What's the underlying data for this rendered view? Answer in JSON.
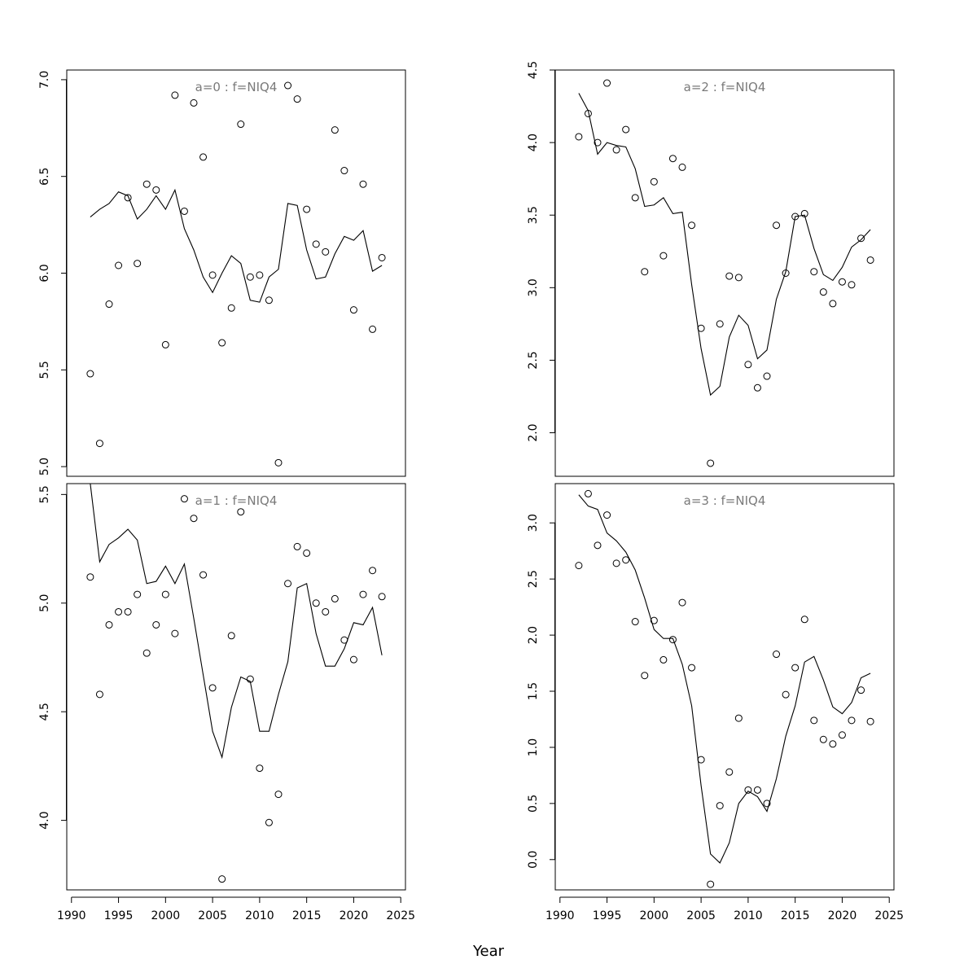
{
  "figure": {
    "xlabel": "Year",
    "xticks": [
      1990,
      1995,
      2000,
      2005,
      2010,
      2015,
      2020,
      2025
    ],
    "xlim": [
      1989.5,
      2025.5
    ]
  },
  "chart_data": [
    {
      "type": "scatter",
      "panel": "top-left",
      "title": "a=0  :  f=NIQ4",
      "ylim": [
        4.95,
        7.05
      ],
      "yticks": [
        5.0,
        5.5,
        6.0,
        6.5,
        7.0
      ],
      "ytick_labels": [
        "5.0",
        "5.5",
        "6.0",
        "6.5",
        "7.0"
      ],
      "show_xaxis": false,
      "x": [
        1992,
        1993,
        1994,
        1995,
        1996,
        1997,
        1998,
        1999,
        2000,
        2001,
        2002,
        2003,
        2004,
        2005,
        2006,
        2007,
        2008,
        2009,
        2010,
        2011,
        2012,
        2013,
        2014,
        2015,
        2016,
        2017,
        2018,
        2019,
        2020,
        2021,
        2022,
        2023
      ],
      "series": [
        {
          "name": "observed",
          "style": "points",
          "values": [
            5.48,
            5.12,
            5.84,
            6.04,
            6.39,
            6.05,
            6.46,
            6.43,
            5.63,
            6.92,
            6.32,
            6.88,
            6.6,
            5.99,
            5.64,
            5.82,
            6.77,
            5.98,
            5.99,
            5.86,
            5.02,
            6.97,
            6.9,
            6.33,
            6.15,
            6.11,
            6.74,
            6.53,
            5.81,
            6.46,
            5.71,
            6.08
          ]
        },
        {
          "name": "fitted",
          "style": "line",
          "values": [
            6.29,
            6.33,
            6.36,
            6.42,
            6.4,
            6.28,
            6.33,
            6.4,
            6.33,
            6.43,
            6.23,
            6.12,
            5.98,
            5.9,
            6.0,
            6.09,
            6.05,
            5.86,
            5.85,
            5.98,
            6.02,
            6.36,
            6.35,
            6.12,
            5.97,
            5.98,
            6.1,
            6.19,
            6.17,
            6.22,
            6.01,
            6.04
          ]
        }
      ]
    },
    {
      "type": "scatter",
      "panel": "top-right",
      "title": "a=2  :  f=NIQ4",
      "ylim": [
        1.7,
        4.5
      ],
      "yticks": [
        2.0,
        2.5,
        3.0,
        3.5,
        4.0,
        4.5
      ],
      "ytick_labels": [
        "2.0",
        "2.5",
        "3.0",
        "3.5",
        "4.0",
        "4.5"
      ],
      "show_xaxis": false,
      "x": [
        1992,
        1993,
        1994,
        1995,
        1996,
        1997,
        1998,
        1999,
        2000,
        2001,
        2002,
        2003,
        2004,
        2005,
        2006,
        2007,
        2008,
        2009,
        2010,
        2011,
        2012,
        2013,
        2014,
        2015,
        2016,
        2017,
        2018,
        2019,
        2020,
        2021,
        2022,
        2023
      ],
      "series": [
        {
          "name": "observed",
          "style": "points",
          "values": [
            4.04,
            4.2,
            4.0,
            4.41,
            3.95,
            4.09,
            3.62,
            3.11,
            3.73,
            3.22,
            3.89,
            3.83,
            3.43,
            2.72,
            1.79,
            2.75,
            3.08,
            3.07,
            2.47,
            2.31,
            2.39,
            3.43,
            3.1,
            3.49,
            3.51,
            3.11,
            2.97,
            2.89,
            3.04,
            3.02,
            3.34,
            3.19
          ]
        },
        {
          "name": "fitted",
          "style": "line",
          "values": [
            4.34,
            4.22,
            3.92,
            4.0,
            3.98,
            3.97,
            3.82,
            3.56,
            3.57,
            3.62,
            3.51,
            3.52,
            3.02,
            2.58,
            2.26,
            2.32,
            2.66,
            2.81,
            2.74,
            2.51,
            2.57,
            2.92,
            3.11,
            3.49,
            3.5,
            3.27,
            3.09,
            3.05,
            3.14,
            3.28,
            3.33,
            3.4
          ]
        }
      ]
    },
    {
      "type": "scatter",
      "panel": "bottom-left",
      "title": "a=1  :  f=NIQ4",
      "ylim": [
        3.68,
        5.55
      ],
      "yticks": [
        4.0,
        4.5,
        5.0,
        5.5
      ],
      "ytick_labels": [
        "4.0",
        "4.5",
        "5.0",
        "5.5"
      ],
      "show_xaxis": true,
      "x": [
        1992,
        1993,
        1994,
        1995,
        1996,
        1997,
        1998,
        1999,
        2000,
        2001,
        2002,
        2003,
        2004,
        2005,
        2006,
        2007,
        2008,
        2009,
        2010,
        2011,
        2012,
        2013,
        2014,
        2015,
        2016,
        2017,
        2018,
        2019,
        2020,
        2021,
        2022,
        2023
      ],
      "series": [
        {
          "name": "observed",
          "style": "points",
          "values": [
            5.12,
            4.58,
            4.9,
            4.96,
            4.96,
            5.04,
            4.77,
            4.9,
            5.04,
            4.86,
            5.48,
            5.39,
            5.13,
            4.61,
            3.73,
            4.85,
            5.42,
            4.65,
            4.24,
            3.99,
            4.12,
            5.09,
            5.26,
            5.23,
            5.0,
            4.96,
            5.02,
            4.83,
            4.74,
            5.04,
            5.15,
            5.03
          ]
        },
        {
          "name": "fitted",
          "style": "line",
          "values": [
            5.6,
            5.19,
            5.27,
            5.3,
            5.34,
            5.29,
            5.09,
            5.1,
            5.17,
            5.09,
            5.18,
            4.93,
            4.67,
            4.41,
            4.29,
            4.52,
            4.66,
            4.64,
            4.41,
            4.41,
            4.58,
            4.73,
            5.07,
            5.09,
            4.86,
            4.71,
            4.71,
            4.79,
            4.91,
            4.9,
            4.98,
            4.76
          ]
        }
      ]
    },
    {
      "type": "scatter",
      "panel": "bottom-right",
      "title": "a=3  :  f=NIQ4",
      "ylim": [
        -0.27,
        3.35
      ],
      "yticks": [
        0.0,
        0.5,
        1.0,
        1.5,
        2.0,
        2.5,
        3.0
      ],
      "ytick_labels": [
        "0.0",
        "0.5",
        "1.0",
        "1.5",
        "2.0",
        "2.5",
        "3.0"
      ],
      "show_xaxis": true,
      "x": [
        1992,
        1993,
        1994,
        1995,
        1996,
        1997,
        1998,
        1999,
        2000,
        2001,
        2002,
        2003,
        2004,
        2005,
        2006,
        2007,
        2008,
        2009,
        2010,
        2011,
        2012,
        2013,
        2014,
        2015,
        2016,
        2017,
        2018,
        2019,
        2020,
        2021,
        2022,
        2023
      ],
      "series": [
        {
          "name": "observed",
          "style": "points",
          "values": [
            2.62,
            3.26,
            2.8,
            3.07,
            2.64,
            2.67,
            2.12,
            1.64,
            2.13,
            1.78,
            1.96,
            2.29,
            1.71,
            0.89,
            -0.22,
            0.48,
            0.78,
            1.26,
            0.62,
            0.62,
            0.5,
            1.83,
            1.47,
            1.71,
            2.14,
            1.24,
            1.07,
            1.03,
            1.11,
            1.24,
            1.51,
            1.23
          ]
        },
        {
          "name": "fitted",
          "style": "line",
          "values": [
            3.25,
            3.15,
            3.12,
            2.91,
            2.84,
            2.74,
            2.58,
            2.33,
            2.05,
            1.97,
            1.97,
            1.74,
            1.37,
            0.66,
            0.05,
            -0.03,
            0.15,
            0.5,
            0.61,
            0.56,
            0.43,
            0.72,
            1.1,
            1.37,
            1.76,
            1.81,
            1.6,
            1.36,
            1.3,
            1.4,
            1.62,
            1.66
          ]
        }
      ]
    }
  ]
}
